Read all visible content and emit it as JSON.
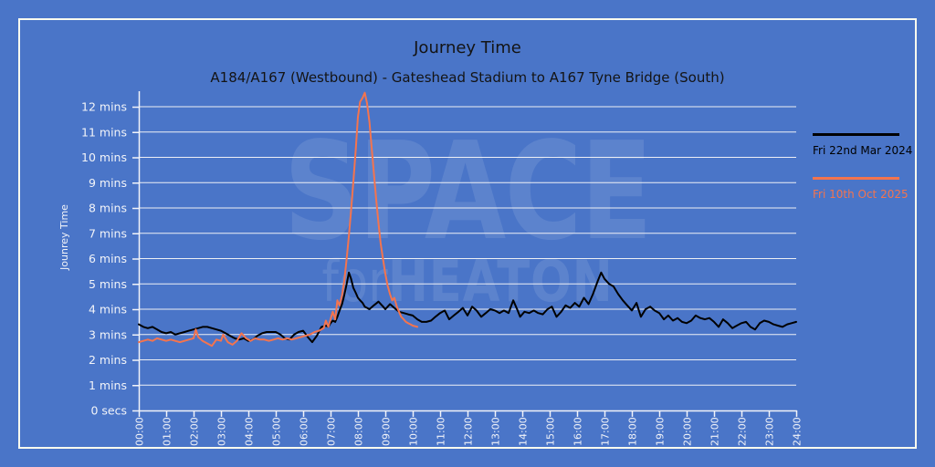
{
  "header": {
    "title": "Journey Time",
    "subtitle": "A184/A167 (Westbound) - Gateshead Stadium to A167 Tyne Bridge (South)"
  },
  "watermark": {
    "line1": "SPACE",
    "line2_prefix": "for",
    "line2_main": "HEATON"
  },
  "colors": {
    "background": "#4a75c8",
    "panel_border": "#fbfbef",
    "gridline": "#eef0f5",
    "axis_text": "#f2f4f9",
    "title_text": "#141414",
    "series_black": "#000000",
    "series_orange": "#f4744e"
  },
  "chart_data": {
    "type": "line",
    "title": "Journey Time",
    "subtitle": "A184/A167 (Westbound) - Gateshead Stadium to A167 Tyne Bridge (South)",
    "ylabel": "Jounrey Time",
    "xlabel": "",
    "xlim_hours": [
      0,
      24
    ],
    "ylim_minutes": [
      0,
      12.6
    ],
    "grid": "horizontal-white-lines-each-minute",
    "legend_position": "right-outside",
    "y_ticks": [
      "0 secs",
      "1 mins",
      "2 mins",
      "3 mins",
      "4 mins",
      "5 mins",
      "6 mins",
      "7 mins",
      "8 mins",
      "9 mins",
      "10 mins",
      "11 mins",
      "12 mins"
    ],
    "x_ticks": [
      "00:00",
      "01:00",
      "02:00",
      "03:00",
      "04:00",
      "05:00",
      "06:00",
      "07:00",
      "08:00",
      "09:00",
      "10:00",
      "11:00",
      "12:00",
      "13:00",
      "14:00",
      "15:00",
      "16:00",
      "17:00",
      "18:00",
      "19:00",
      "20:00",
      "21:00",
      "22:00",
      "23:00",
      "24:00"
    ],
    "series": [
      {
        "name": "Fri 22nd Mar 2024",
        "color": "#000000",
        "units": "hours_vs_minutes",
        "points": [
          [
            0,
            3.4
          ],
          [
            0.17,
            3.3
          ],
          [
            0.33,
            3.25
          ],
          [
            0.5,
            3.3
          ],
          [
            0.67,
            3.2
          ],
          [
            0.83,
            3.1
          ],
          [
            1,
            3.05
          ],
          [
            1.17,
            3.1
          ],
          [
            1.33,
            3.0
          ],
          [
            1.5,
            3.05
          ],
          [
            1.67,
            3.1
          ],
          [
            1.83,
            3.15
          ],
          [
            2,
            3.2
          ],
          [
            2.17,
            3.25
          ],
          [
            2.33,
            3.3
          ],
          [
            2.5,
            3.3
          ],
          [
            2.67,
            3.25
          ],
          [
            2.83,
            3.2
          ],
          [
            3,
            3.15
          ],
          [
            3.17,
            3.05
          ],
          [
            3.33,
            2.95
          ],
          [
            3.5,
            2.85
          ],
          [
            3.67,
            2.8
          ],
          [
            3.83,
            2.85
          ],
          [
            4,
            2.75
          ],
          [
            4.17,
            2.8
          ],
          [
            4.33,
            2.95
          ],
          [
            4.5,
            3.05
          ],
          [
            4.67,
            3.1
          ],
          [
            4.83,
            3.1
          ],
          [
            5,
            3.1
          ],
          [
            5.17,
            3.0
          ],
          [
            5.33,
            2.85
          ],
          [
            5.5,
            2.8
          ],
          [
            5.67,
            3.0
          ],
          [
            5.83,
            3.1
          ],
          [
            6,
            3.15
          ],
          [
            6.17,
            2.9
          ],
          [
            6.33,
            2.7
          ],
          [
            6.5,
            2.95
          ],
          [
            6.67,
            3.3
          ],
          [
            6.83,
            3.35
          ],
          [
            6.92,
            3.3
          ],
          [
            7,
            3.45
          ],
          [
            7.08,
            3.55
          ],
          [
            7.17,
            3.5
          ],
          [
            7.25,
            3.7
          ],
          [
            7.33,
            3.95
          ],
          [
            7.42,
            4.2
          ],
          [
            7.5,
            4.55
          ],
          [
            7.58,
            4.95
          ],
          [
            7.67,
            5.45
          ],
          [
            7.75,
            5.2
          ],
          [
            7.83,
            4.85
          ],
          [
            7.92,
            4.65
          ],
          [
            8,
            4.45
          ],
          [
            8.08,
            4.35
          ],
          [
            8.17,
            4.25
          ],
          [
            8.25,
            4.1
          ],
          [
            8.42,
            4.0
          ],
          [
            8.58,
            4.15
          ],
          [
            8.75,
            4.3
          ],
          [
            8.92,
            4.1
          ],
          [
            9,
            4.0
          ],
          [
            9.17,
            4.2
          ],
          [
            9.33,
            4.05
          ],
          [
            9.5,
            3.9
          ],
          [
            9.67,
            3.85
          ],
          [
            9.83,
            3.8
          ],
          [
            10,
            3.75
          ],
          [
            10.17,
            3.6
          ],
          [
            10.33,
            3.5
          ],
          [
            10.5,
            3.5
          ],
          [
            10.67,
            3.55
          ],
          [
            10.83,
            3.7
          ],
          [
            11,
            3.85
          ],
          [
            11.17,
            3.95
          ],
          [
            11.33,
            3.6
          ],
          [
            11.5,
            3.75
          ],
          [
            11.67,
            3.9
          ],
          [
            11.83,
            4.05
          ],
          [
            12,
            3.75
          ],
          [
            12.17,
            4.1
          ],
          [
            12.33,
            3.95
          ],
          [
            12.5,
            3.7
          ],
          [
            12.67,
            3.85
          ],
          [
            12.83,
            4.0
          ],
          [
            13,
            3.95
          ],
          [
            13.17,
            3.85
          ],
          [
            13.33,
            3.95
          ],
          [
            13.5,
            3.85
          ],
          [
            13.67,
            4.35
          ],
          [
            13.83,
            3.95
          ],
          [
            13.92,
            3.7
          ],
          [
            14.08,
            3.9
          ],
          [
            14.25,
            3.85
          ],
          [
            14.42,
            3.95
          ],
          [
            14.58,
            3.85
          ],
          [
            14.75,
            3.8
          ],
          [
            14.92,
            4.0
          ],
          [
            15.08,
            4.1
          ],
          [
            15.25,
            3.7
          ],
          [
            15.42,
            3.9
          ],
          [
            15.58,
            4.15
          ],
          [
            15.75,
            4.05
          ],
          [
            15.92,
            4.25
          ],
          [
            16.08,
            4.1
          ],
          [
            16.25,
            4.45
          ],
          [
            16.42,
            4.2
          ],
          [
            16.58,
            4.6
          ],
          [
            16.75,
            5.1
          ],
          [
            16.88,
            5.45
          ],
          [
            17,
            5.2
          ],
          [
            17.17,
            5.0
          ],
          [
            17.33,
            4.9
          ],
          [
            17.5,
            4.6
          ],
          [
            17.67,
            4.35
          ],
          [
            17.83,
            4.15
          ],
          [
            18,
            3.95
          ],
          [
            18.17,
            4.25
          ],
          [
            18.33,
            3.7
          ],
          [
            18.5,
            4.0
          ],
          [
            18.67,
            4.1
          ],
          [
            18.83,
            3.95
          ],
          [
            19,
            3.85
          ],
          [
            19.17,
            3.6
          ],
          [
            19.33,
            3.75
          ],
          [
            19.5,
            3.55
          ],
          [
            19.67,
            3.65
          ],
          [
            19.83,
            3.5
          ],
          [
            20,
            3.45
          ],
          [
            20.17,
            3.55
          ],
          [
            20.33,
            3.75
          ],
          [
            20.5,
            3.65
          ],
          [
            20.67,
            3.6
          ],
          [
            20.83,
            3.65
          ],
          [
            21,
            3.5
          ],
          [
            21.17,
            3.3
          ],
          [
            21.33,
            3.6
          ],
          [
            21.5,
            3.45
          ],
          [
            21.67,
            3.25
          ],
          [
            21.83,
            3.35
          ],
          [
            22,
            3.45
          ],
          [
            22.17,
            3.5
          ],
          [
            22.33,
            3.3
          ],
          [
            22.5,
            3.2
          ],
          [
            22.67,
            3.45
          ],
          [
            22.83,
            3.55
          ],
          [
            23,
            3.5
          ],
          [
            23.17,
            3.4
          ],
          [
            23.33,
            3.35
          ],
          [
            23.5,
            3.3
          ],
          [
            23.67,
            3.4
          ],
          [
            23.83,
            3.45
          ],
          [
            24,
            3.5
          ]
        ]
      },
      {
        "name": "Fri 10th Oct 2025",
        "color": "#f4744e",
        "units": "hours_vs_minutes",
        "points": [
          [
            0,
            2.7
          ],
          [
            0.17,
            2.75
          ],
          [
            0.33,
            2.8
          ],
          [
            0.5,
            2.75
          ],
          [
            0.67,
            2.85
          ],
          [
            0.83,
            2.8
          ],
          [
            1,
            2.75
          ],
          [
            1.17,
            2.8
          ],
          [
            1.33,
            2.75
          ],
          [
            1.5,
            2.7
          ],
          [
            1.67,
            2.75
          ],
          [
            1.83,
            2.8
          ],
          [
            2,
            2.85
          ],
          [
            2.08,
            3.2
          ],
          [
            2.17,
            2.9
          ],
          [
            2.33,
            2.75
          ],
          [
            2.5,
            2.65
          ],
          [
            2.67,
            2.55
          ],
          [
            2.83,
            2.8
          ],
          [
            3,
            2.75
          ],
          [
            3.08,
            3.0
          ],
          [
            3.25,
            2.7
          ],
          [
            3.42,
            2.6
          ],
          [
            3.58,
            2.75
          ],
          [
            3.75,
            3.05
          ],
          [
            3.92,
            2.85
          ],
          [
            4.08,
            2.75
          ],
          [
            4.25,
            2.85
          ],
          [
            4.42,
            2.8
          ],
          [
            4.58,
            2.8
          ],
          [
            4.75,
            2.75
          ],
          [
            4.92,
            2.8
          ],
          [
            5.08,
            2.85
          ],
          [
            5.25,
            2.8
          ],
          [
            5.42,
            2.85
          ],
          [
            5.58,
            2.8
          ],
          [
            5.75,
            2.85
          ],
          [
            5.92,
            2.9
          ],
          [
            6.08,
            2.95
          ],
          [
            6.25,
            3.0
          ],
          [
            6.42,
            3.1
          ],
          [
            6.58,
            3.15
          ],
          [
            6.75,
            3.25
          ],
          [
            6.83,
            3.55
          ],
          [
            6.92,
            3.3
          ],
          [
            7,
            3.6
          ],
          [
            7.08,
            3.9
          ],
          [
            7.17,
            3.6
          ],
          [
            7.25,
            4.35
          ],
          [
            7.33,
            4.15
          ],
          [
            7.42,
            4.55
          ],
          [
            7.5,
            5.1
          ],
          [
            7.58,
            5.9
          ],
          [
            7.67,
            6.9
          ],
          [
            7.75,
            7.9
          ],
          [
            7.83,
            9.0
          ],
          [
            7.92,
            10.3
          ],
          [
            8,
            11.6
          ],
          [
            8.08,
            12.2
          ],
          [
            8.17,
            12.35
          ],
          [
            8.25,
            12.55
          ],
          [
            8.33,
            12.15
          ],
          [
            8.42,
            11.4
          ],
          [
            8.5,
            10.4
          ],
          [
            8.58,
            9.4
          ],
          [
            8.67,
            8.3
          ],
          [
            8.75,
            7.4
          ],
          [
            8.83,
            6.6
          ],
          [
            8.92,
            5.95
          ],
          [
            9,
            5.4
          ],
          [
            9.08,
            4.95
          ],
          [
            9.17,
            4.6
          ],
          [
            9.25,
            4.35
          ],
          [
            9.33,
            4.45
          ],
          [
            9.42,
            4.1
          ],
          [
            9.5,
            3.9
          ],
          [
            9.58,
            3.7
          ],
          [
            9.67,
            3.6
          ],
          [
            9.75,
            3.5
          ],
          [
            9.83,
            3.45
          ],
          [
            9.92,
            3.4
          ],
          [
            10,
            3.35
          ],
          [
            10.17,
            3.3
          ]
        ]
      }
    ]
  }
}
